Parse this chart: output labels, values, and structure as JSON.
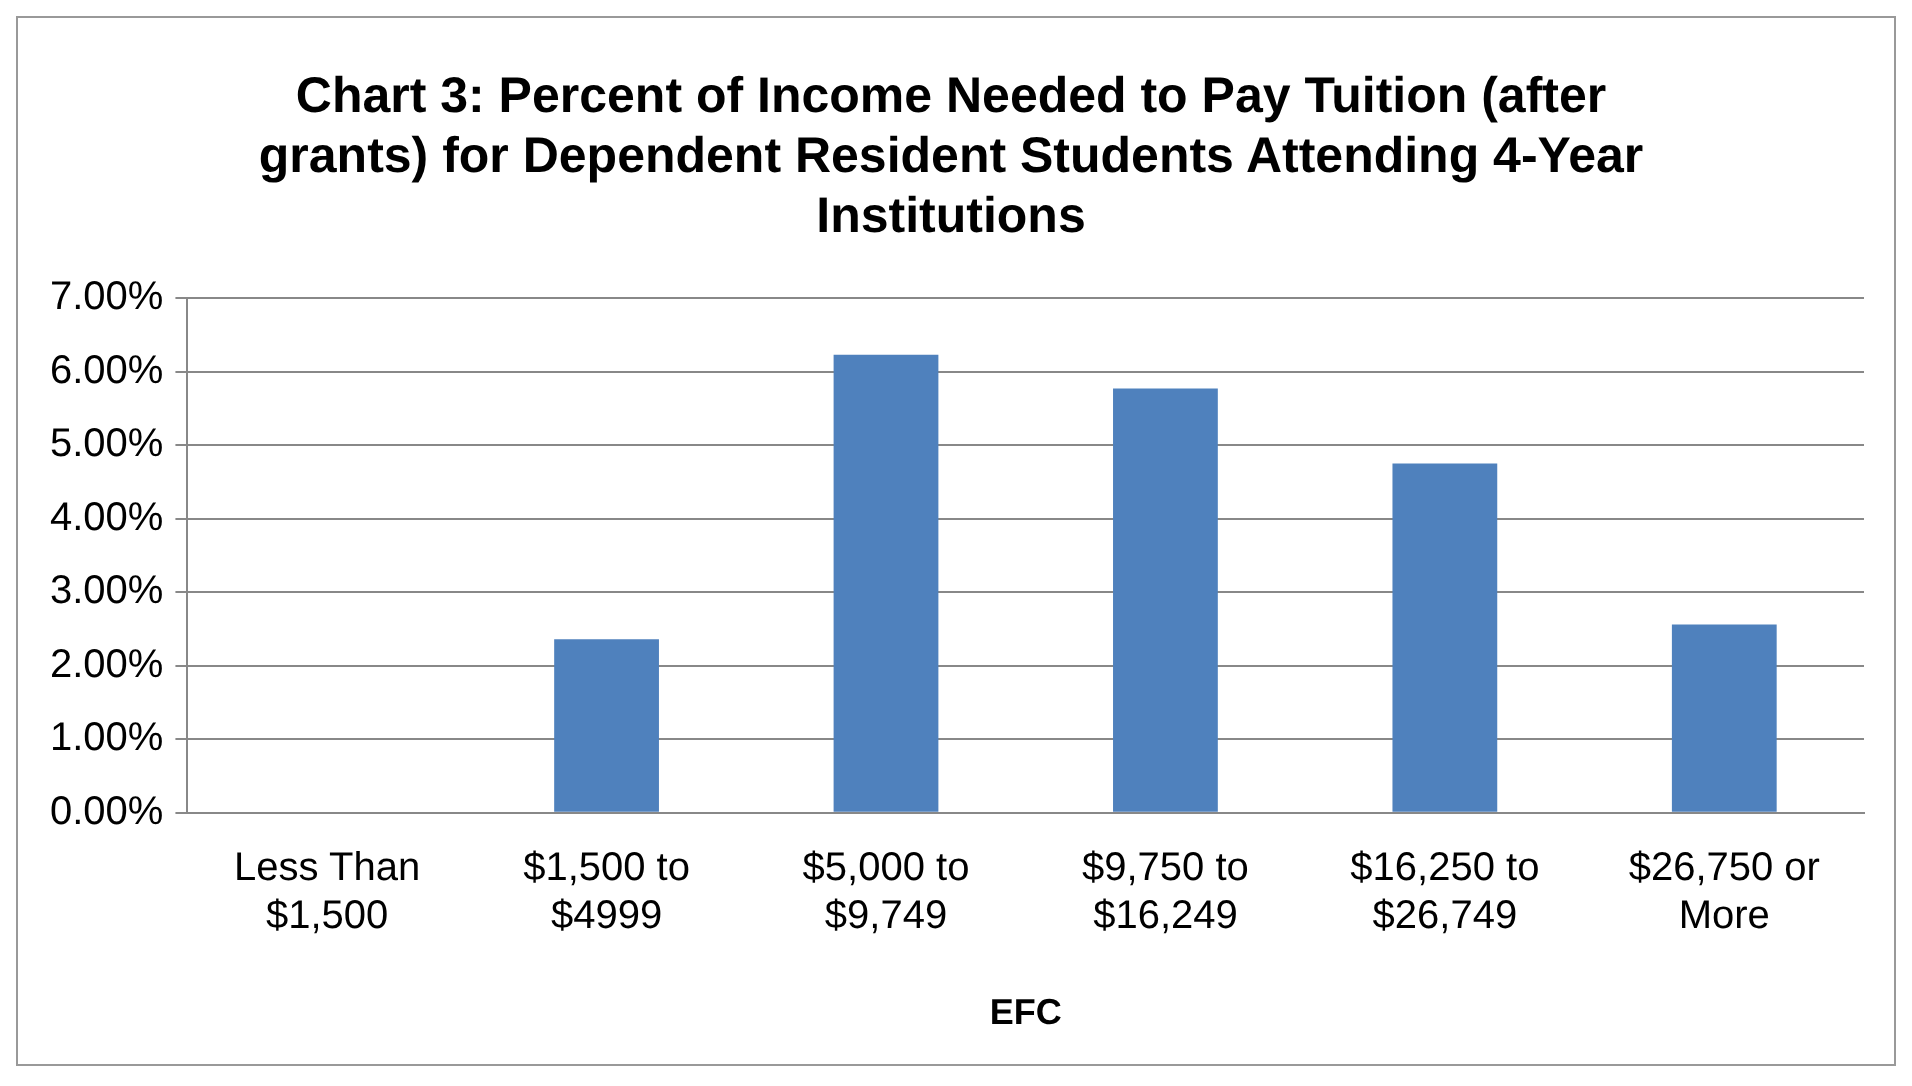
{
  "chart_data": {
    "type": "bar",
    "title": "Chart 3: Percent of Income Needed to Pay Tuition (after grants) for Dependent Resident Students Attending 4-Year Institutions",
    "xlabel": "EFC",
    "categories": [
      "Less Than $1,500",
      "$1,500 to $4999",
      "$5,000 to $9,749",
      "$9,750 to $16,249",
      "$16,250 to $26,749",
      "$26,750 or More"
    ],
    "values": [
      0,
      2.36,
      6.23,
      5.77,
      4.75,
      2.56
    ],
    "color": "#4f81bd",
    "ylim": [
      0,
      7
    ],
    "yticks": [
      {
        "value": 0,
        "label": "0.00%"
      },
      {
        "value": 1,
        "label": "1.00%"
      },
      {
        "value": 2,
        "label": "2.00%"
      },
      {
        "value": 3,
        "label": "3.00%"
      },
      {
        "value": 4,
        "label": "4.00%"
      },
      {
        "value": 5,
        "label": "5.00%"
      },
      {
        "value": 6,
        "label": "6.00%"
      },
      {
        "value": 7,
        "label": "7.00%"
      }
    ],
    "grid": "y",
    "legend": false
  }
}
